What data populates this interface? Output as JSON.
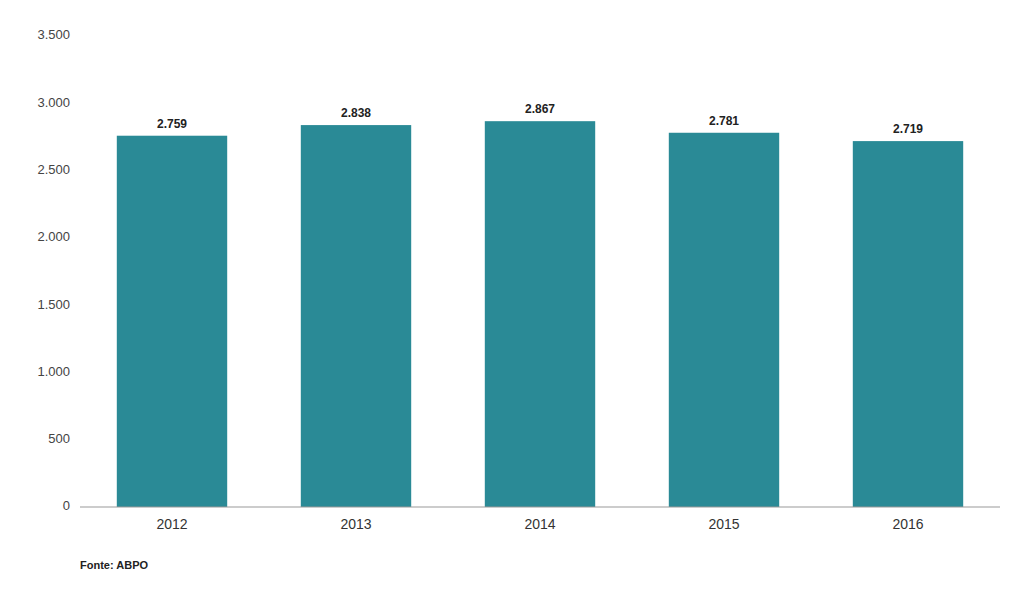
{
  "chart_data": {
    "type": "bar",
    "categories": [
      "2012",
      "2013",
      "2014",
      "2015",
      "2016"
    ],
    "values": [
      2759,
      2838,
      2867,
      2781,
      2719
    ],
    "value_labels": [
      "2.759",
      "2.838",
      "2.867",
      "2.781",
      "2.719"
    ],
    "data_labels": true,
    "color": "#2a8a96",
    "ylim": [
      0,
      3500
    ],
    "yticks": [
      0,
      500,
      {
        "value": 1000,
        "label": "1.000"
      },
      {
        "value": 1500,
        "label": "1.500"
      },
      {
        "value": 2000,
        "label": "2.000"
      },
      {
        "value": 2500,
        "label": "2.500"
      },
      {
        "value": 3000,
        "label": "3.000"
      },
      {
        "value": 3500,
        "label": "3.500"
      }
    ],
    "grid": false,
    "annotation": "Fonte: ABPO"
  }
}
